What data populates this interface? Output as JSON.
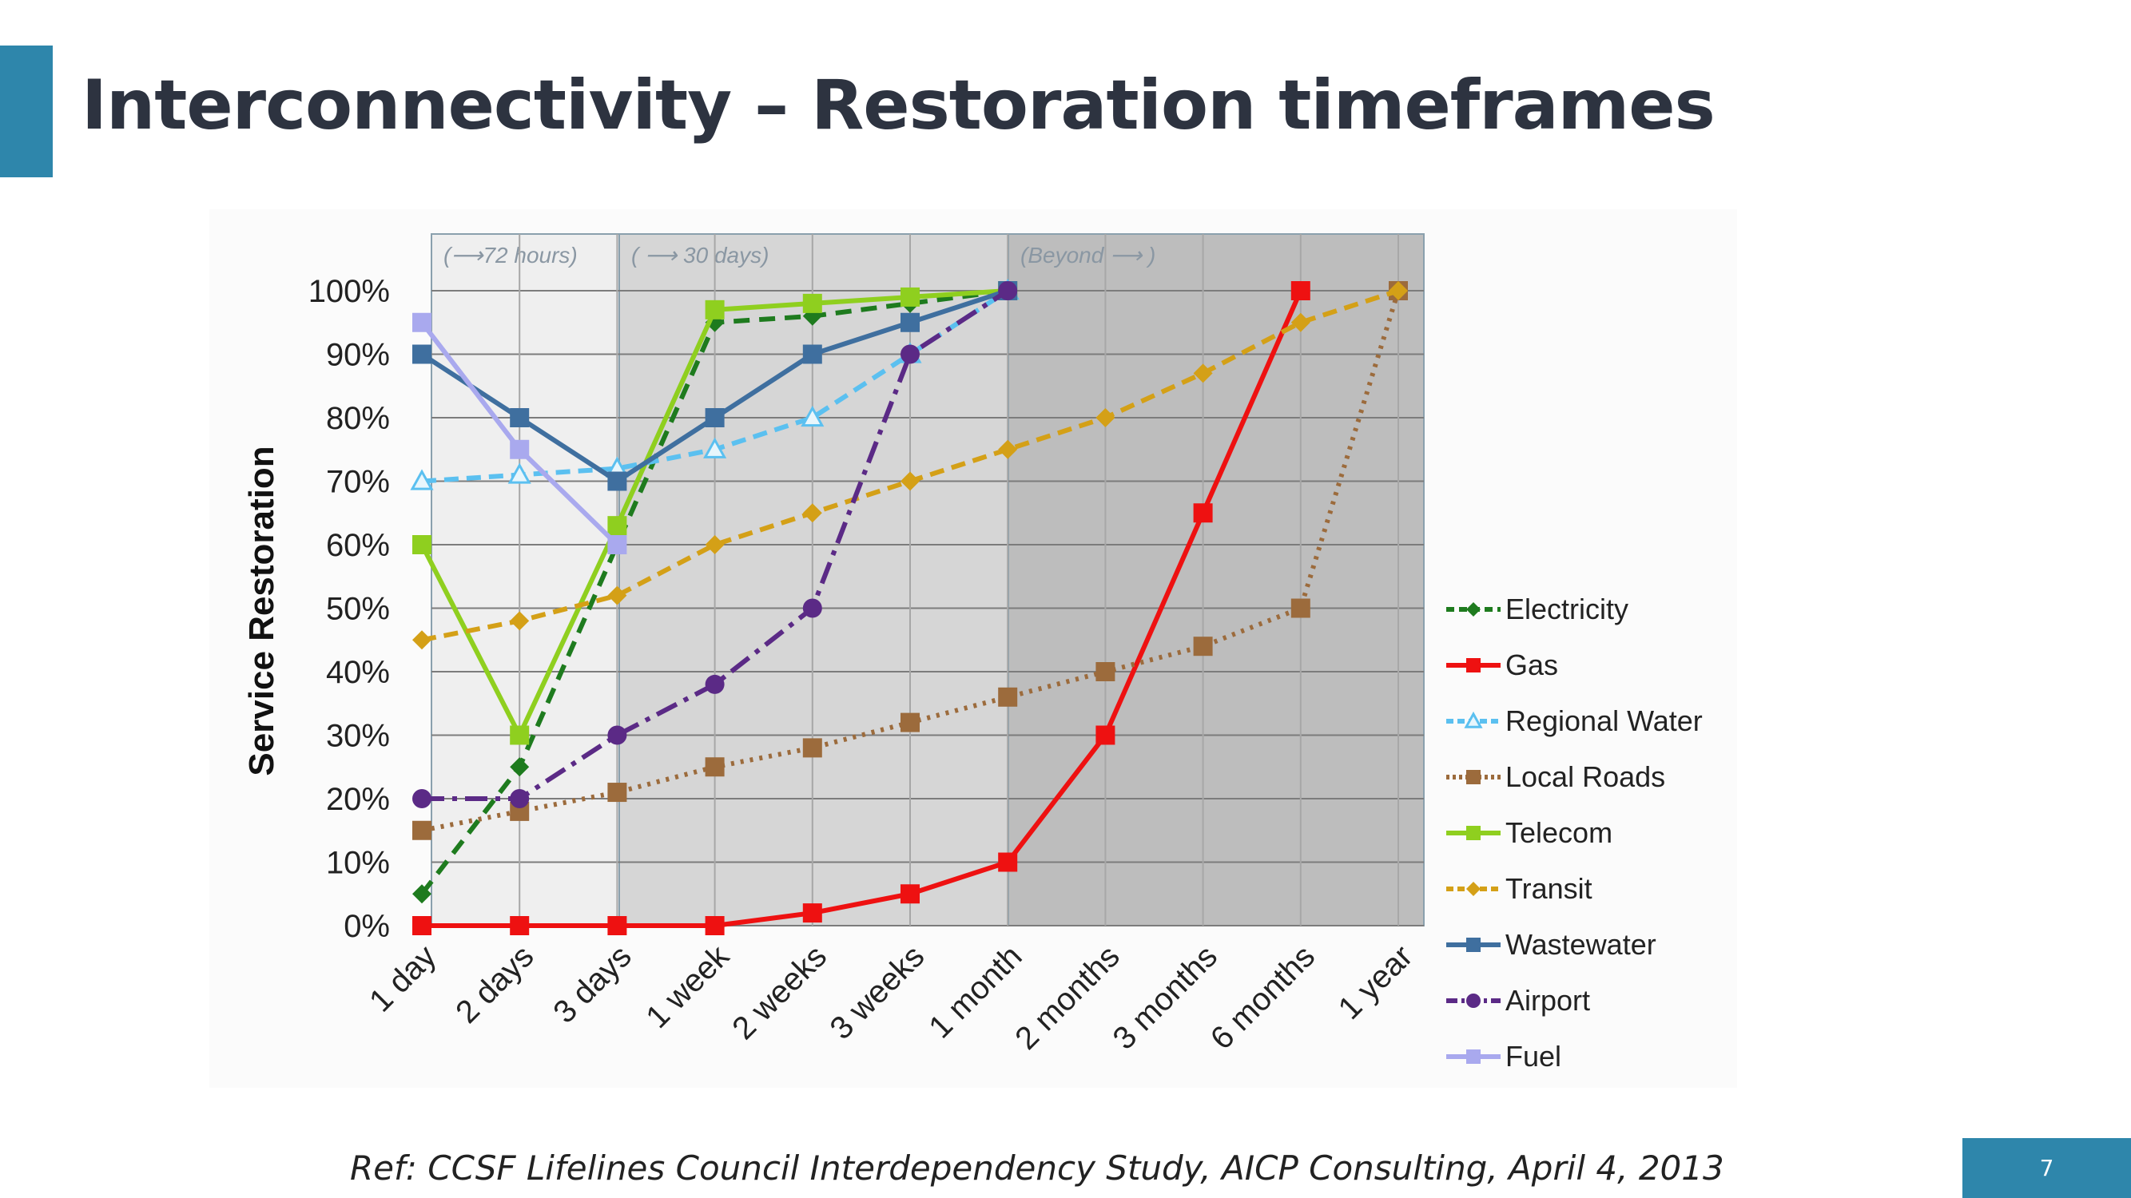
{
  "slide": {
    "title": "Interconnectivity – Restoration timeframes",
    "reference": "Ref: CCSF Lifelines Council Interdependency Study, AICP Consulting, April 4, 2013",
    "page_number": "7",
    "accent_color": "#2e86ab"
  },
  "chart_data": {
    "type": "line",
    "title": "",
    "xlabel": "",
    "ylabel": "Service Restoration",
    "categories": [
      "1 day",
      "2 days",
      "3 days",
      "1 week",
      "2 weeks",
      "3 weeks",
      "1 month",
      "2 months",
      "3 months",
      "6 months",
      "1 year"
    ],
    "ylim": [
      0,
      100
    ],
    "y_ticks": [
      "0%",
      "10%",
      "20%",
      "30%",
      "40%",
      "50%",
      "60%",
      "70%",
      "80%",
      "90%",
      "100%"
    ],
    "grid": true,
    "legend_position": "right",
    "time_bands": [
      {
        "label": "(⟶72 hours)",
        "from": "1 day",
        "to": "3 days",
        "color": "#efefef"
      },
      {
        "label": "( ⟶ 30 days)",
        "from": "3 days",
        "to": "1 month",
        "color": "#d6d6d6"
      },
      {
        "label": "(Beyond ⟶ )",
        "from": "1 month",
        "to": "1 year",
        "color": "#bdbdbd"
      }
    ],
    "series": [
      {
        "name": "Electricity",
        "color": "#1e7b1e",
        "dash": "20,12",
        "marker": "diamond",
        "values": [
          5,
          25,
          60,
          95,
          96,
          98,
          100,
          null,
          null,
          null,
          null
        ]
      },
      {
        "name": "Gas",
        "color": "#ee1111",
        "dash": "",
        "marker": "square",
        "values": [
          0,
          0,
          0,
          0,
          2,
          5,
          10,
          30,
          65,
          100,
          null
        ]
      },
      {
        "name": "Regional Water",
        "color": "#5bc0f0",
        "dash": "18,10",
        "marker": "triangle",
        "values": [
          70,
          71,
          72,
          75,
          80,
          90,
          100,
          null,
          null,
          null,
          null
        ]
      },
      {
        "name": "Local Roads",
        "color": "#9c6b3c",
        "dash": "4,8",
        "marker": "square",
        "values": [
          15,
          18,
          21,
          25,
          28,
          32,
          36,
          40,
          44,
          50,
          100
        ]
      },
      {
        "name": "Telecom",
        "color": "#8fcf1f",
        "dash": "",
        "marker": "square",
        "values": [
          60,
          30,
          63,
          97,
          98,
          99,
          100,
          null,
          null,
          null,
          null
        ]
      },
      {
        "name": "Transit",
        "color": "#d4a017",
        "dash": "18,10",
        "marker": "diamond",
        "values": [
          45,
          48,
          52,
          60,
          65,
          70,
          75,
          80,
          87,
          95,
          100
        ]
      },
      {
        "name": "Wastewater",
        "color": "#3f6f9f",
        "dash": "",
        "marker": "square",
        "values": [
          90,
          80,
          70,
          80,
          90,
          95,
          100,
          null,
          null,
          null,
          null
        ]
      },
      {
        "name": "Airport",
        "color": "#5b2a86",
        "dash": "28,10,6,10",
        "marker": "circle",
        "values": [
          20,
          20,
          30,
          38,
          50,
          90,
          100,
          null,
          null,
          null,
          null
        ]
      },
      {
        "name": "Fuel",
        "color": "#a9a9ee",
        "dash": "",
        "marker": "square",
        "values": [
          95,
          75,
          60,
          null,
          null,
          null,
          null,
          null,
          null,
          null,
          null
        ]
      }
    ]
  }
}
